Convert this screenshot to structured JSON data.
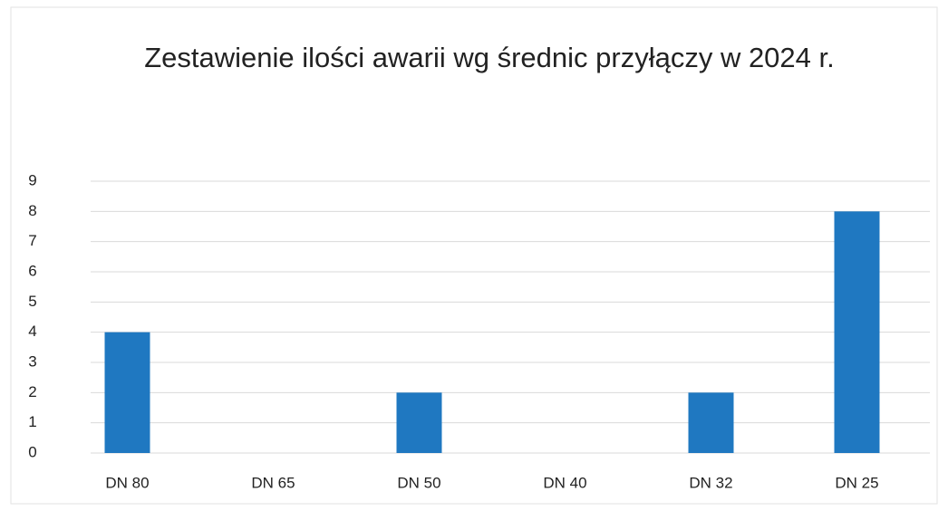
{
  "chart_data": {
    "type": "bar",
    "title": "Zestawienie ilości awarii wg średnic przyłączy w 2024 r.",
    "categories": [
      "DN 80",
      "DN 65",
      "DN 50",
      "DN 40",
      "DN 32",
      "DN 25"
    ],
    "values": [
      4,
      0,
      2,
      0,
      2,
      8
    ],
    "color": "#1f78c1",
    "ylim": [
      0,
      9
    ],
    "yticks": [
      0,
      1,
      2,
      3,
      4,
      5,
      6,
      7,
      8,
      9
    ],
    "grid": true
  }
}
